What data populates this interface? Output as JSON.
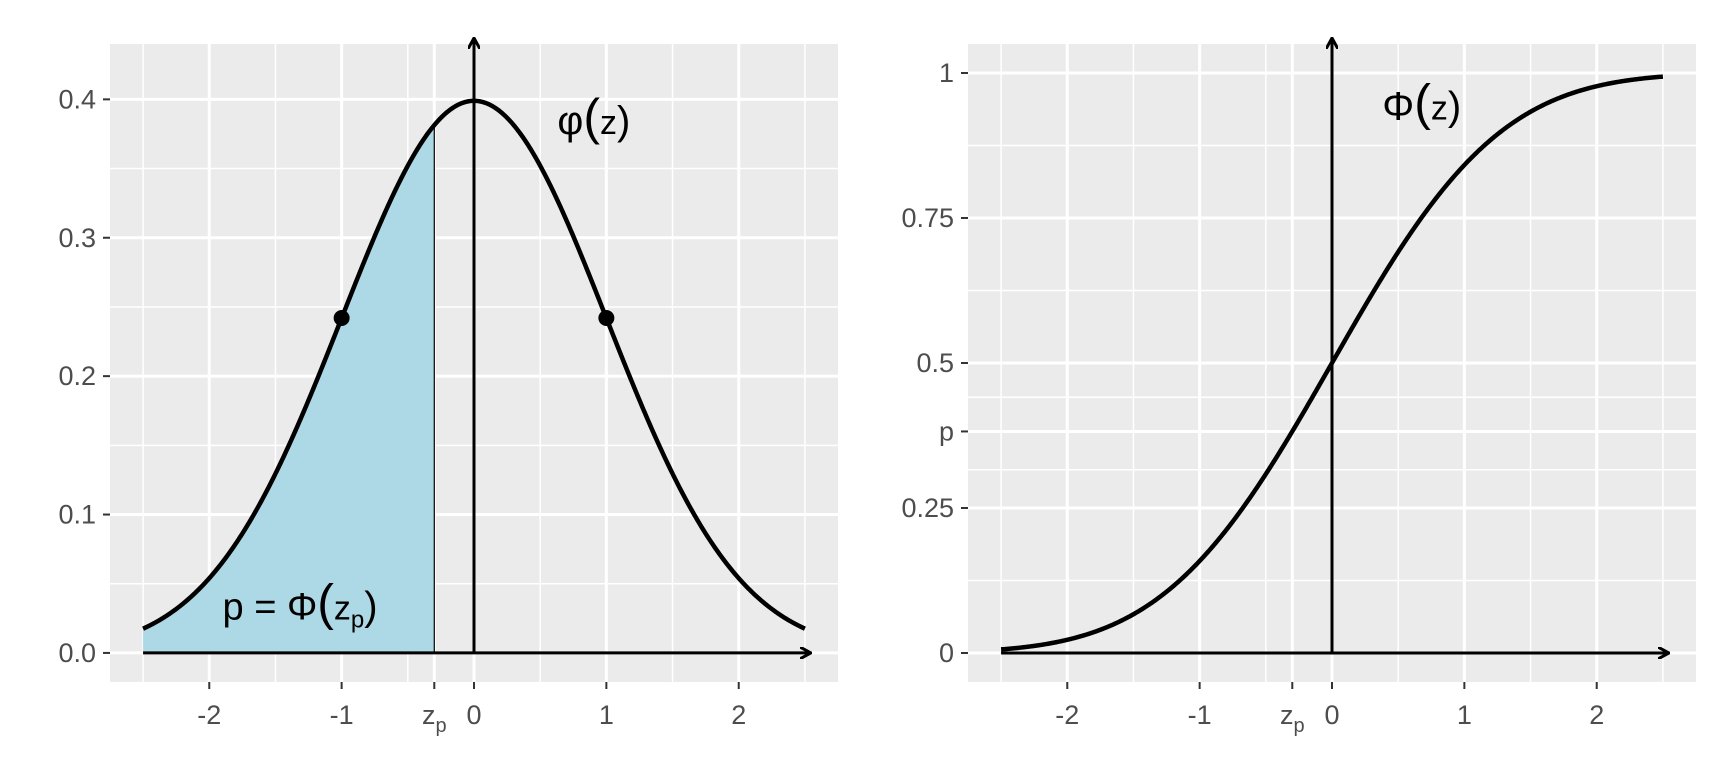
{
  "colors": {
    "panel_background": "#ebebeb",
    "grid": "#ffffff",
    "curve": "#000000",
    "shaded_area": "#add8e6",
    "tick_text": "#4d4d4d"
  },
  "chart_data": [
    {
      "type": "line",
      "function": "standard-normal-density",
      "curve_label": {
        "symbol": "φ",
        "open": "(",
        "arg": "z",
        "close": ")"
      },
      "x_range": [
        -2.5,
        2.5
      ],
      "xlim": [
        -2.75,
        2.75
      ],
      "ylim": [
        -0.021,
        0.44
      ],
      "grid": true,
      "x_ticks": [
        {
          "value": -2,
          "label": "-2"
        },
        {
          "value": -1,
          "label": "-1"
        },
        {
          "value": -0.3,
          "label": "z",
          "sub": "p"
        },
        {
          "value": 0,
          "label": "0"
        },
        {
          "value": 1,
          "label": "1"
        },
        {
          "value": 2,
          "label": "2"
        }
      ],
      "y_ticks": [
        {
          "value": 0.0,
          "label": "0.0"
        },
        {
          "value": 0.1,
          "label": "0.1"
        },
        {
          "value": 0.2,
          "label": "0.2"
        },
        {
          "value": 0.3,
          "label": "0.3"
        },
        {
          "value": 0.4,
          "label": "0.4"
        }
      ],
      "z_p": -0.3,
      "shaded_from": -2.5,
      "inflection_points": [
        {
          "x": -1,
          "y": 0.242
        },
        {
          "x": 1,
          "y": 0.242
        }
      ],
      "area_label": {
        "text": "p = Φ(",
        "arg": "z",
        "sub": "p",
        "close": ")"
      }
    },
    {
      "type": "line",
      "function": "standard-normal-cdf",
      "curve_label": {
        "symbol": "Φ",
        "open": "(",
        "arg": "z",
        "close": ")"
      },
      "x_range": [
        -2.5,
        2.5
      ],
      "xlim": [
        -2.75,
        2.75
      ],
      "ylim": [
        -0.05,
        1.05
      ],
      "grid": true,
      "x_ticks": [
        {
          "value": -2,
          "label": "-2"
        },
        {
          "value": -1,
          "label": "-1"
        },
        {
          "value": -0.3,
          "label": "z",
          "sub": "p"
        },
        {
          "value": 0,
          "label": "0"
        },
        {
          "value": 1,
          "label": "1"
        },
        {
          "value": 2,
          "label": "2"
        }
      ],
      "y_ticks": [
        {
          "value": 0,
          "label": "0"
        },
        {
          "value": 0.25,
          "label": "0.25"
        },
        {
          "value": 0.382,
          "label": "p"
        },
        {
          "value": 0.5,
          "label": "0.5"
        },
        {
          "value": 0.75,
          "label": "0.75"
        },
        {
          "value": 1,
          "label": "1"
        }
      ]
    }
  ]
}
